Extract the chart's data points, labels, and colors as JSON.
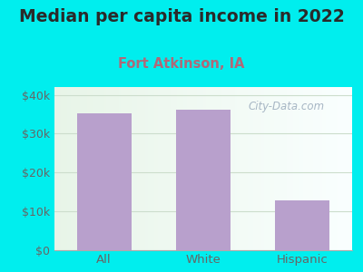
{
  "title": "Median per capita income in 2022",
  "subtitle": "Fort Atkinson, IA",
  "categories": [
    "All",
    "White",
    "Hispanic"
  ],
  "values": [
    35200,
    36200,
    12800
  ],
  "bar_color": "#b8a0cc",
  "background_color": "#00EEEE",
  "title_color": "#2a2a2a",
  "subtitle_color": "#b06878",
  "tick_label_color": "#666666",
  "ylim": [
    0,
    42000
  ],
  "yticks": [
    0,
    10000,
    20000,
    30000,
    40000
  ],
  "ytick_labels": [
    "$0",
    "$10k",
    "$20k",
    "$30k",
    "$40k"
  ],
  "watermark": "City-Data.com",
  "watermark_color": "#99aabb",
  "grid_color": "#ccddcc",
  "title_fontsize": 13.5,
  "subtitle_fontsize": 10.5
}
